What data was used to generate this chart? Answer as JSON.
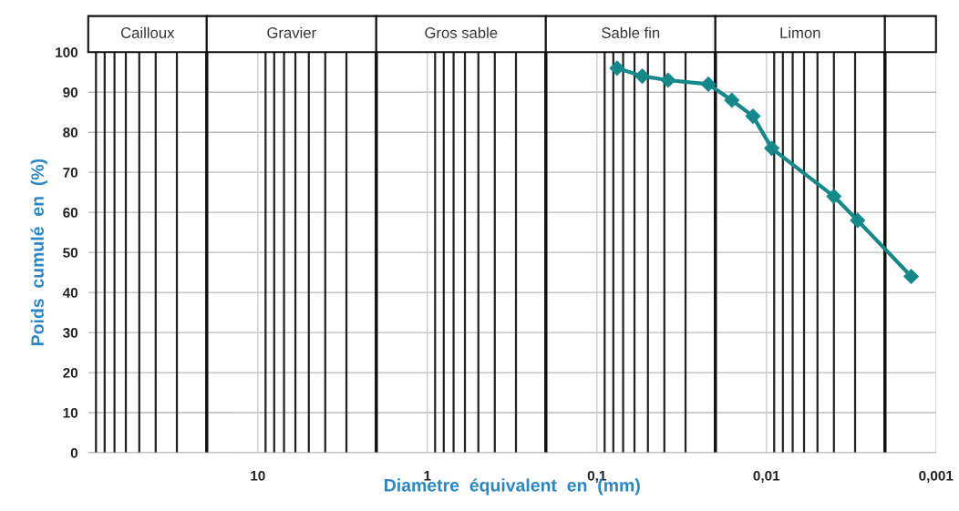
{
  "chart_data": {
    "type": "line",
    "xlabel": "Diametre  équivalent  en  (mm)",
    "ylabel": "Poids  cumulé  en  (%)",
    "log": "x",
    "xlim": [
      100,
      0.001
    ],
    "ylim": [
      0,
      100
    ],
    "xticks": [
      {
        "value": 90,
        "label": null
      },
      {
        "value": 80,
        "label": null
      },
      {
        "value": 70,
        "label": null
      },
      {
        "value": 60,
        "label": null
      },
      {
        "value": 50,
        "label": null
      },
      {
        "value": 40,
        "label": null
      },
      {
        "value": 30,
        "label": null
      },
      {
        "value": 10,
        "label": "10"
      },
      {
        "value": 9,
        "label": null
      },
      {
        "value": 8,
        "label": null
      },
      {
        "value": 7,
        "label": null
      },
      {
        "value": 6,
        "label": null
      },
      {
        "value": 5,
        "label": null
      },
      {
        "value": 4,
        "label": null
      },
      {
        "value": 3,
        "label": null
      },
      {
        "value": 1,
        "label": "1"
      },
      {
        "value": 0.9,
        "label": null
      },
      {
        "value": 0.8,
        "label": null
      },
      {
        "value": 0.7,
        "label": null
      },
      {
        "value": 0.6,
        "label": null
      },
      {
        "value": 0.5,
        "label": null
      },
      {
        "value": 0.4,
        "label": null
      },
      {
        "value": 0.3,
        "label": null
      },
      {
        "value": 0.1,
        "label": "0,1"
      },
      {
        "value": 0.09,
        "label": null
      },
      {
        "value": 0.08,
        "label": null
      },
      {
        "value": 0.07,
        "label": null
      },
      {
        "value": 0.06,
        "label": null
      },
      {
        "value": 0.05,
        "label": null
      },
      {
        "value": 0.04,
        "label": null
      },
      {
        "value": 0.03,
        "label": null
      },
      {
        "value": 0.01,
        "label": "0,01"
      },
      {
        "value": 0.009,
        "label": null
      },
      {
        "value": 0.008,
        "label": null
      },
      {
        "value": 0.007,
        "label": null
      },
      {
        "value": 0.006,
        "label": null
      },
      {
        "value": 0.005,
        "label": null
      },
      {
        "value": 0.004,
        "label": null
      },
      {
        "value": 0.003,
        "label": null
      },
      {
        "value": 0.001,
        "label": "0,001"
      }
    ],
    "yticks": [
      0,
      10,
      20,
      30,
      40,
      50,
      60,
      70,
      80,
      90,
      100
    ],
    "grid": true,
    "marker": "diamond",
    "line_style": "solid",
    "series": [
      {
        "color": "#15898a",
        "x": [
          0.076,
          0.054,
          0.038,
          0.022,
          0.016,
          0.012,
          0.0093,
          0.004,
          0.0029,
          0.0014
        ],
        "values": [
          96,
          94,
          93,
          92,
          88,
          84,
          76,
          64,
          58,
          44
        ]
      }
    ],
    "ref_lines": [
      {
        "axis": "x",
        "value": 20,
        "color": "#111111"
      },
      {
        "axis": "x",
        "value": 2,
        "color": "#111111"
      },
      {
        "axis": "x",
        "value": 0.2,
        "color": "#111111"
      },
      {
        "axis": "x",
        "value": 0.02,
        "color": "#111111"
      },
      {
        "axis": "x",
        "value": 0.002,
        "color": "#111111"
      }
    ],
    "annotations": [
      "Cailloux",
      "Gravier",
      "Gros sable",
      "Sable fin",
      "Limon"
    ]
  }
}
